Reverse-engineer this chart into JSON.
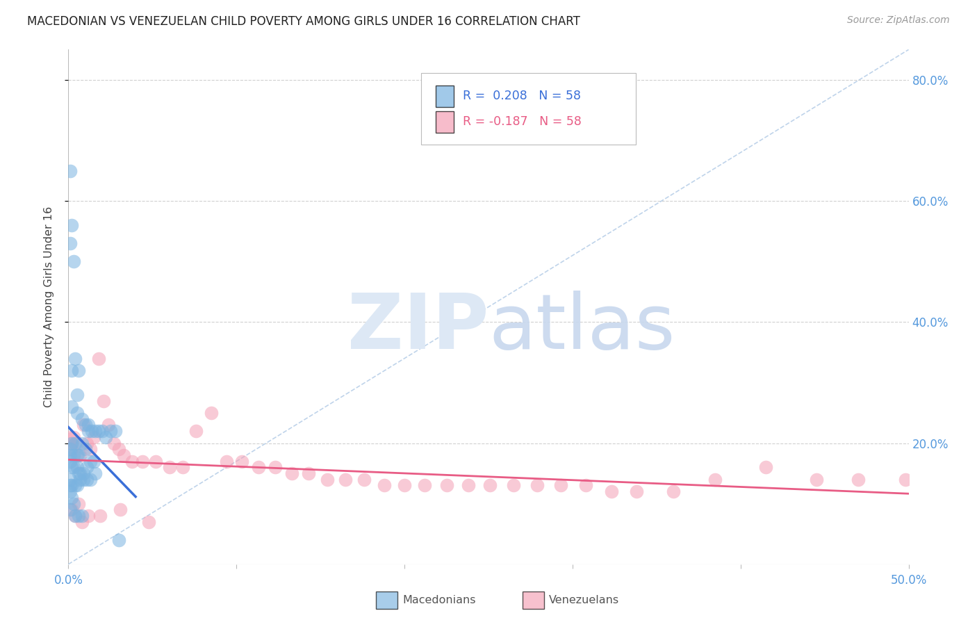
{
  "title": "MACEDONIAN VS VENEZUELAN CHILD POVERTY AMONG GIRLS UNDER 16 CORRELATION CHART",
  "source": "Source: ZipAtlas.com",
  "ylabel": "Child Poverty Among Girls Under 16",
  "xlim": [
    0.0,
    0.5
  ],
  "ylim": [
    0.0,
    0.85
  ],
  "xticks": [
    0.0,
    0.1,
    0.2,
    0.3,
    0.4,
    0.5
  ],
  "xtick_labels": [
    "0.0%",
    "",
    "",
    "",
    "",
    "50.0%"
  ],
  "ytick_labels_right": [
    "20.0%",
    "40.0%",
    "60.0%",
    "80.0%"
  ],
  "ytick_vals": [
    0.2,
    0.4,
    0.6,
    0.8
  ],
  "macedonian_R": 0.208,
  "macedonian_N": 58,
  "venezuelan_R": -0.187,
  "venezuelan_N": 58,
  "macedonian_color": "#7ab3e0",
  "venezuelan_color": "#f4a0b5",
  "macedonian_line_color": "#3a6fd8",
  "venezuelan_line_color": "#e85c85",
  "diagonal_color": "#b8cfe8",
  "grid_color": "#d0d0d0",
  "axis_color": "#bbbbbb",
  "tick_color": "#5599dd",
  "background_color": "#ffffff",
  "macedonian_x": [
    0.001,
    0.002,
    0.001,
    0.003,
    0.004,
    0.002,
    0.006,
    0.005,
    0.002,
    0.005,
    0.008,
    0.01,
    0.012,
    0.014,
    0.016,
    0.018,
    0.02,
    0.022,
    0.025,
    0.028,
    0.004,
    0.002,
    0.001,
    0.001,
    0.003,
    0.005,
    0.006,
    0.008,
    0.01,
    0.012,
    0.001,
    0.002,
    0.003,
    0.005,
    0.006,
    0.007,
    0.009,
    0.011,
    0.013,
    0.015,
    0.001,
    0.001,
    0.002,
    0.004,
    0.005,
    0.007,
    0.009,
    0.011,
    0.013,
    0.016,
    0.03,
    0.001,
    0.002,
    0.003,
    0.001,
    0.004,
    0.006,
    0.008
  ],
  "macedonian_y": [
    0.65,
    0.56,
    0.53,
    0.5,
    0.34,
    0.32,
    0.32,
    0.28,
    0.26,
    0.25,
    0.24,
    0.23,
    0.23,
    0.22,
    0.22,
    0.22,
    0.22,
    0.21,
    0.22,
    0.22,
    0.2,
    0.2,
    0.19,
    0.18,
    0.18,
    0.18,
    0.18,
    0.2,
    0.19,
    0.22,
    0.17,
    0.16,
    0.16,
    0.16,
    0.15,
    0.15,
    0.15,
    0.16,
    0.17,
    0.17,
    0.14,
    0.13,
    0.13,
    0.13,
    0.13,
    0.14,
    0.14,
    0.14,
    0.14,
    0.15,
    0.04,
    0.12,
    0.11,
    0.1,
    0.09,
    0.08,
    0.08,
    0.08
  ],
  "venezuelan_x": [
    0.001,
    0.002,
    0.002,
    0.003,
    0.005,
    0.007,
    0.009,
    0.011,
    0.013,
    0.015,
    0.018,
    0.021,
    0.024,
    0.027,
    0.03,
    0.033,
    0.038,
    0.044,
    0.052,
    0.06,
    0.068,
    0.076,
    0.085,
    0.094,
    0.103,
    0.113,
    0.123,
    0.133,
    0.143,
    0.154,
    0.165,
    0.176,
    0.188,
    0.2,
    0.212,
    0.225,
    0.238,
    0.251,
    0.265,
    0.279,
    0.293,
    0.308,
    0.323,
    0.338,
    0.36,
    0.385,
    0.415,
    0.445,
    0.47,
    0.498,
    0.002,
    0.004,
    0.006,
    0.008,
    0.012,
    0.019,
    0.031,
    0.048
  ],
  "venezuelan_y": [
    0.21,
    0.2,
    0.19,
    0.21,
    0.2,
    0.18,
    0.23,
    0.2,
    0.19,
    0.21,
    0.34,
    0.27,
    0.23,
    0.2,
    0.19,
    0.18,
    0.17,
    0.17,
    0.17,
    0.16,
    0.16,
    0.22,
    0.25,
    0.17,
    0.17,
    0.16,
    0.16,
    0.15,
    0.15,
    0.14,
    0.14,
    0.14,
    0.13,
    0.13,
    0.13,
    0.13,
    0.13,
    0.13,
    0.13,
    0.13,
    0.13,
    0.13,
    0.12,
    0.12,
    0.12,
    0.14,
    0.16,
    0.14,
    0.14,
    0.14,
    0.09,
    0.08,
    0.1,
    0.07,
    0.08,
    0.08,
    0.09,
    0.07
  ]
}
